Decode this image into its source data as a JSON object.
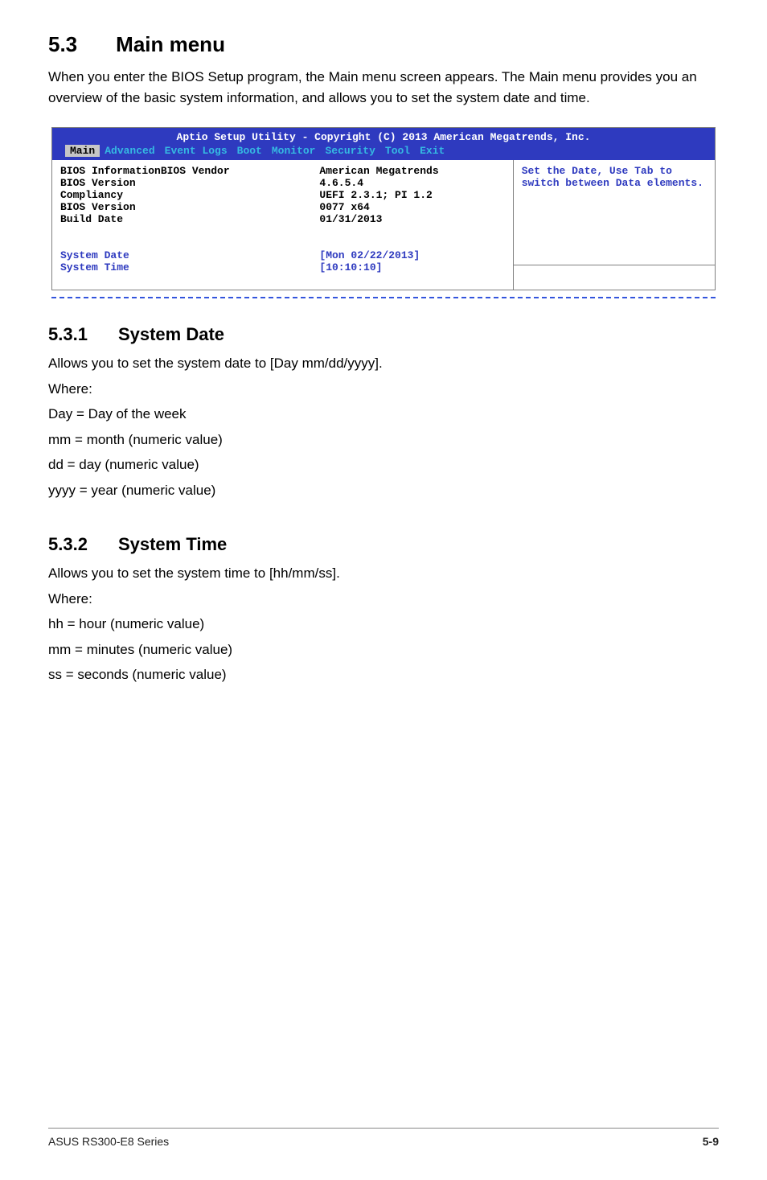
{
  "section": {
    "num": "5.3",
    "title": "Main menu",
    "intro": "When you enter the BIOS Setup program, the Main menu screen appears. The Main menu provides you an overview of the basic system information, and allows you to set the system date and time."
  },
  "bios": {
    "header_bg": "#2e3abf",
    "header_text": "#ffffff",
    "active_tab_bg": "#c6c6c6",
    "inactive_tab_color": "#35b9e2",
    "blue_text": "#2e3abf",
    "title": "Aptio Setup Utility - Copyright (C) 2013 American Megatrends, Inc.",
    "tabs": [
      "Main",
      "Advanced",
      "Event Logs",
      "Boot",
      "Monitor",
      "Security",
      "Tool",
      "Exit"
    ],
    "active_tab_index": 0,
    "rows": [
      {
        "label": "BIOS InformationBIOS Vendor",
        "value": "American Megatrends",
        "style": "black"
      },
      {
        "label": "BIOS Version",
        "value": "4.6.5.4",
        "style": "black"
      },
      {
        "label": "Compliancy",
        "value": "UEFI 2.3.1; PI 1.2",
        "style": "black"
      },
      {
        "label": "BIOS Version",
        "value": "0077 x64",
        "style": "black"
      },
      {
        "label": "Build Date",
        "value": "01/31/2013",
        "style": "black"
      },
      {
        "label": "",
        "value": "",
        "style": "black"
      },
      {
        "label": "",
        "value": "",
        "style": "black"
      },
      {
        "label": "System Date",
        "value": "[Mon 02/22/2013]",
        "style": "blue"
      },
      {
        "label": "System Time",
        "value": "[10:10:10]",
        "style": "blue"
      }
    ],
    "help": "Set the Date, Use Tab to switch between Data elements."
  },
  "subsections": [
    {
      "num": "5.3.1",
      "title": "System Date",
      "lines": [
        "Allows you to set the system date to [Day mm/dd/yyyy].",
        "Where:",
        "Day = Day of the week",
        "mm = month (numeric value)",
        "dd = day (numeric value)",
        "yyyy = year (numeric value)"
      ]
    },
    {
      "num": "5.3.2",
      "title": "System Time",
      "lines": [
        "Allows you to set the system time to [hh/mm/ss].",
        "Where:",
        "hh = hour (numeric value)",
        "mm = minutes (numeric value)",
        "ss = seconds (numeric value)"
      ]
    }
  ],
  "footer": {
    "left": "ASUS RS300-E8 Series",
    "right": "5-9"
  }
}
